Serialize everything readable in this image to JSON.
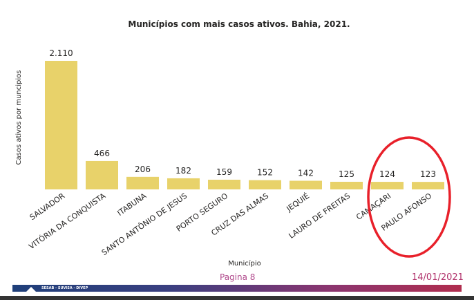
{
  "chart_data": {
    "type": "bar",
    "title": "Municípios com mais casos ativos. Bahia, 2021.",
    "xlabel": "Município",
    "ylabel": "Casos ativos por muncipios",
    "categories": [
      "SALVADOR",
      "VITÓRIA DA CONQUISTA",
      "ITABUNA",
      "SANTO ANTÔNIO DE JESUS",
      "PORTO SEGURO",
      "CRUZ DAS ALMAS",
      "JEQUIÉ",
      "LAURO DE FREITAS",
      "CAMAÇARI",
      "PAULO AFONSO"
    ],
    "values": [
      2110,
      466,
      206,
      182,
      159,
      152,
      142,
      125,
      124,
      123
    ],
    "data_labels": [
      "2.110",
      "466",
      "206",
      "182",
      "159",
      "152",
      "142",
      "125",
      "124",
      "123"
    ],
    "ylim": [
      0,
      2110
    ],
    "grid": false,
    "bar_color": "#E8D26A",
    "annotation": {
      "shape": "ellipse",
      "color": "#E8202A",
      "highlights": [
        "CAMAÇARI",
        "PAULO AFONSO"
      ]
    }
  },
  "footer": {
    "page": "Pagina 8",
    "date": "14/01/2021",
    "band_text": "SESAB - SUVISA - DIVEP"
  }
}
